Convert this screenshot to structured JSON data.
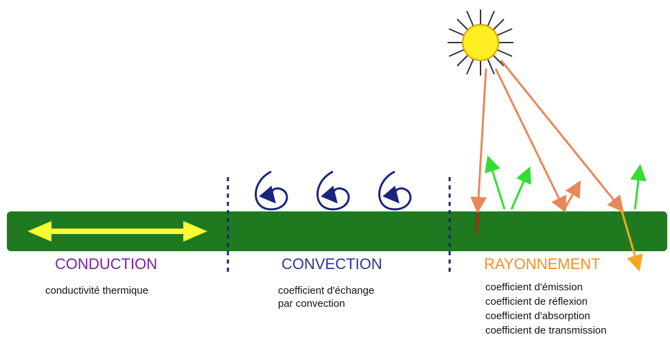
{
  "sections": [
    {
      "title": "CONDUCTION",
      "lines": [
        "conductivité thermique"
      ]
    },
    {
      "title": "CONVECTION",
      "lines": [
        "coefficient d'échange",
        "par convection"
      ]
    },
    {
      "title": "RAYONNEMENT",
      "lines": [
        "coefficient d'émission",
        "coefficient de réflexion",
        "coefficient d'absorption",
        "coefficient de transmission"
      ]
    }
  ]
}
